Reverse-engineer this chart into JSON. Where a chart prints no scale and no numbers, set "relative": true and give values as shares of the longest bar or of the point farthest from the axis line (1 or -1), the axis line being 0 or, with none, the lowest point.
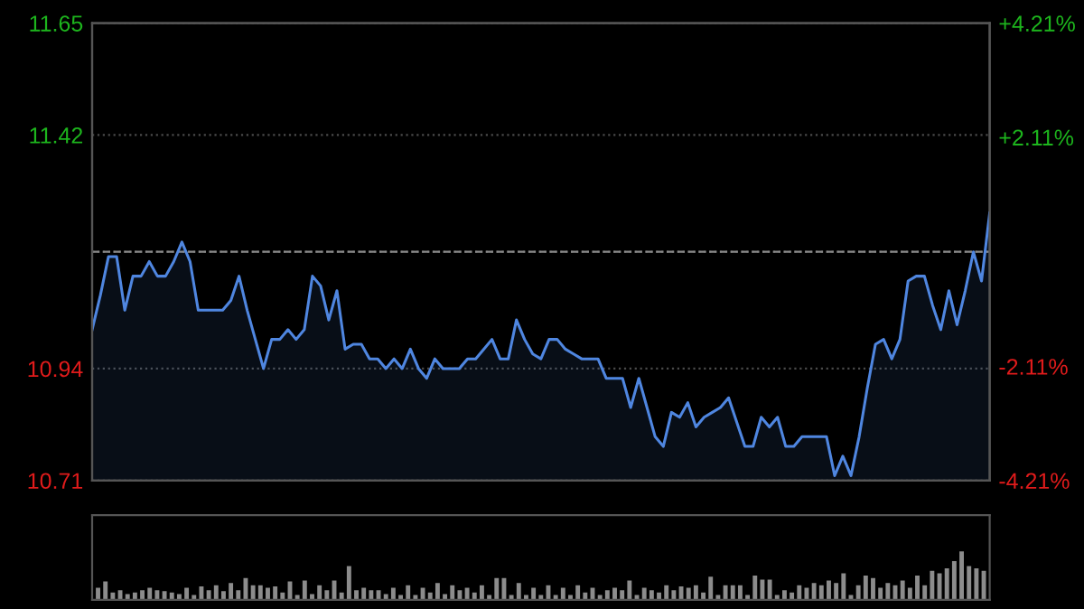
{
  "chart_data": [
    {
      "type": "line",
      "grid": "y",
      "categories": [
        null,
        null,
        null,
        null,
        null,
        null,
        null,
        null,
        null,
        null,
        null,
        null,
        null,
        null,
        null,
        null,
        null,
        null,
        null,
        null,
        null,
        null,
        null,
        null,
        null,
        null,
        null,
        null,
        null,
        null,
        null,
        null,
        null,
        null,
        null,
        null,
        null,
        null,
        null,
        null,
        null,
        null,
        null,
        null,
        null,
        null,
        null,
        null,
        null,
        null,
        null,
        null,
        null,
        null,
        null,
        null,
        null,
        null,
        null,
        null,
        null,
        null,
        null,
        null,
        null,
        null,
        null,
        null,
        null,
        null,
        null,
        null,
        null,
        null,
        null,
        null,
        null,
        null,
        null,
        null,
        null,
        null,
        null,
        null,
        null,
        null,
        null,
        null,
        null,
        null,
        null,
        null,
        null,
        null,
        null,
        null,
        null,
        null,
        null,
        null,
        null,
        null,
        null,
        null,
        null,
        null,
        null,
        null,
        null,
        null,
        null
      ],
      "ylim": [
        10.71,
        11.65
      ],
      "yticks": [
        10.71,
        10.94,
        {
          "value": 11.18,
          "label": null
        },
        11.42,
        11.65
      ],
      "y2lim": [
        -4.21,
        4.21
      ],
      "y2ticks": [
        {
          "value": -4.21,
          "label": "-4.21%"
        },
        {
          "value": -2.11,
          "label": "-2.11%"
        },
        {
          "value": 0,
          "label": null
        },
        {
          "value": 2.11,
          "label": "+2.11%"
        },
        {
          "value": 4.21,
          "label": "+4.21%"
        }
      ],
      "ref_lines": [
        {
          "axis": "y",
          "value": 11.18,
          "line_style": "dashed",
          "color": "#8a8a8a"
        }
      ],
      "series": [
        {
          "color": "#4f86e0",
          "values": [
            11.02,
            11.09,
            11.17,
            11.17,
            11.06,
            11.13,
            11.13,
            11.16,
            11.13,
            11.13,
            11.16,
            11.2,
            11.16,
            11.06,
            11.06,
            11.06,
            11.06,
            11.08,
            11.13,
            11.06,
            11.0,
            10.94,
            11.0,
            11.0,
            11.02,
            11.0,
            11.02,
            11.13,
            11.11,
            11.04,
            11.1,
            10.98,
            10.99,
            10.99,
            10.96,
            10.96,
            10.94,
            10.96,
            10.94,
            10.98,
            10.94,
            10.92,
            10.96,
            10.94,
            10.94,
            10.94,
            10.96,
            10.96,
            10.98,
            11.0,
            10.96,
            10.96,
            11.04,
            11.0,
            10.97,
            10.96,
            11.0,
            11.0,
            10.98,
            10.97,
            10.96,
            10.96,
            10.96,
            10.92,
            10.92,
            10.92,
            10.86,
            10.92,
            10.86,
            10.8,
            10.78,
            10.85,
            10.84,
            10.87,
            10.82,
            10.84,
            10.85,
            10.86,
            10.88,
            10.83,
            10.78,
            10.78,
            10.84,
            10.82,
            10.84,
            10.78,
            10.78,
            10.8,
            10.8,
            10.8,
            10.8,
            10.72,
            10.76,
            10.72,
            10.8,
            10.9,
            10.99,
            11.0,
            10.96,
            11.0,
            11.12,
            11.13,
            11.13,
            11.07,
            11.02,
            11.1,
            11.03,
            11.1,
            11.18,
            11.12,
            11.26
          ]
        }
      ]
    },
    {
      "type": "bar",
      "relative": true,
      "color": "#8c8c8c",
      "categories": [
        null,
        null,
        null,
        null,
        null,
        null,
        null,
        null,
        null,
        null,
        null,
        null,
        null,
        null,
        null,
        null,
        null,
        null,
        null,
        null,
        null,
        null,
        null,
        null,
        null,
        null,
        null,
        null,
        null,
        null,
        null,
        null,
        null,
        null,
        null,
        null,
        null,
        null,
        null,
        null,
        null,
        null,
        null,
        null,
        null,
        null,
        null,
        null,
        null,
        null,
        null,
        null,
        null,
        null,
        null,
        null,
        null,
        null,
        null,
        null,
        null,
        null,
        null,
        null,
        null,
        null,
        null,
        null,
        null,
        null,
        null,
        null,
        null,
        null,
        null,
        null,
        null,
        null,
        null,
        null,
        null,
        null,
        null,
        null,
        null,
        null,
        null,
        null,
        null,
        null,
        null,
        null,
        null,
        null,
        null,
        null,
        null,
        null,
        null,
        null,
        null,
        null,
        null,
        null,
        null,
        null,
        null,
        null,
        null,
        null,
        null,
        null,
        null,
        null,
        null,
        null,
        null,
        null,
        null,
        null,
        null
      ],
      "values": [
        0.25,
        0.38,
        0.15,
        0.2,
        0.12,
        0.15,
        0.2,
        0.25,
        0.2,
        0.18,
        0.15,
        0.12,
        0.25,
        0.1,
        0.28,
        0.2,
        0.3,
        0.18,
        0.35,
        0.2,
        0.45,
        0.3,
        0.3,
        0.25,
        0.28,
        0.15,
        0.38,
        0.1,
        0.4,
        0.12,
        0.3,
        0.2,
        0.4,
        0.15,
        0.7,
        0.2,
        0.25,
        0.2,
        0.2,
        0.12,
        0.25,
        0.1,
        0.3,
        0.1,
        0.25,
        0.15,
        0.35,
        0.12,
        0.3,
        0.2,
        0.25,
        0.15,
        0.3,
        0.1,
        0.45,
        0.45,
        0.1,
        0.35,
        0.1,
        0.25,
        0.1,
        0.3,
        0.1,
        0.25,
        0.1,
        0.3,
        0.15,
        0.25,
        0.1,
        0.2,
        0.25,
        0.2,
        0.4,
        0.1,
        0.25,
        0.2,
        0.15,
        0.3,
        0.2,
        0.28,
        0.25,
        0.3,
        0.15,
        0.48,
        0.1,
        0.3,
        0.3,
        0.3,
        0.1,
        0.5,
        0.42,
        0.42,
        0.1,
        0.2,
        0.15,
        0.3,
        0.25,
        0.35,
        0.3,
        0.4,
        0.35,
        0.55,
        0.1,
        0.3,
        0.5,
        0.45,
        0.25,
        0.35,
        0.3,
        0.4,
        0.25,
        0.5,
        0.3,
        0.6,
        0.55,
        0.65,
        0.8,
        1.0,
        0.7,
        0.65,
        0.6
      ]
    }
  ]
}
